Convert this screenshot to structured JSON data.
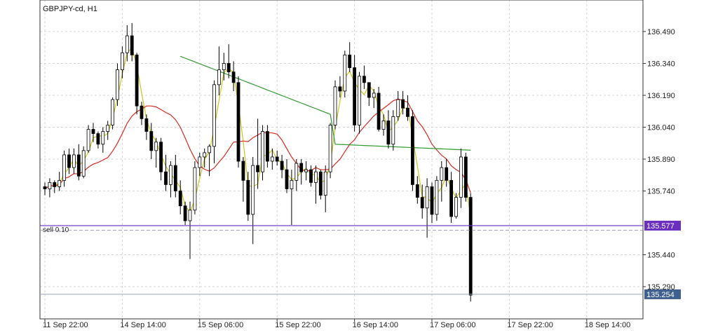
{
  "window_title": "GBPJPY-cd, H1",
  "chart_data": {
    "type": "candlestick",
    "symbol": "GBPJPY-cd",
    "timeframe": "H1",
    "title": "GBPJPY-cd, H1",
    "y_ticks": [
      "136.490",
      "136.340",
      "136.190",
      "136.040",
      "135.890",
      "135.740",
      "135.440",
      "135.290"
    ],
    "ylim": [
      135.21,
      136.59
    ],
    "x_ticks": [
      {
        "label": "11 Sep 22:00",
        "bar": 0
      },
      {
        "label": "14 Sep 14:00",
        "bar": 16
      },
      {
        "label": "15 Sep 06:00",
        "bar": 32
      },
      {
        "label": "15 Sep 22:00",
        "bar": 48
      },
      {
        "label": "16 Sep 14:00",
        "bar": 64
      },
      {
        "label": "17 Sep 06:00",
        "bar": 80
      },
      {
        "label": "17 Sep 22:00",
        "bar": 96
      },
      {
        "label": "18 Sep 14:00",
        "bar": 112
      }
    ],
    "grid": true,
    "order_line": {
      "label": "sell 0.10",
      "price": 135.577,
      "price_label": "135.577",
      "color": "#6a2fc0",
      "sl_price": 135.555
    },
    "bid_line": {
      "price": 135.254,
      "price_label": "135.254",
      "color": "#3f5f8f"
    },
    "ma_colors": {
      "fast": "#c8c81e",
      "medium": "#d9291e",
      "slow": "#2e9a2e"
    },
    "candles": [
      [
        135.76,
        135.78,
        135.72,
        135.75
      ],
      [
        135.75,
        135.8,
        135.71,
        135.78
      ],
      [
        135.78,
        135.79,
        135.73,
        135.76
      ],
      [
        135.76,
        135.83,
        135.74,
        135.79
      ],
      [
        135.79,
        135.93,
        135.76,
        135.91
      ],
      [
        135.91,
        135.94,
        135.82,
        135.85
      ],
      [
        135.85,
        135.94,
        135.82,
        135.91
      ],
      [
        135.91,
        135.96,
        135.79,
        135.81
      ],
      [
        135.81,
        135.95,
        135.8,
        135.93
      ],
      [
        135.93,
        136.05,
        135.92,
        136.03
      ],
      [
        136.03,
        136.06,
        135.97,
        136.01
      ],
      [
        136.01,
        136.02,
        135.94,
        135.96
      ],
      [
        135.96,
        136.04,
        135.92,
        136.02
      ],
      [
        136.02,
        136.07,
        135.98,
        136.05
      ],
      [
        136.05,
        136.18,
        136.03,
        136.17
      ],
      [
        136.17,
        136.34,
        136.14,
        136.31
      ],
      [
        136.31,
        136.42,
        136.27,
        136.39
      ],
      [
        136.39,
        136.52,
        136.35,
        136.47
      ],
      [
        136.47,
        136.53,
        136.35,
        136.38
      ],
      [
        136.38,
        136.39,
        136.1,
        136.14
      ],
      [
        136.14,
        136.16,
        136.05,
        136.08
      ],
      [
        136.08,
        136.1,
        135.98,
        136.02
      ],
      [
        136.02,
        136.06,
        135.89,
        135.93
      ],
      [
        135.93,
        135.99,
        135.85,
        135.97
      ],
      [
        135.97,
        135.99,
        135.79,
        135.83
      ],
      [
        135.83,
        135.91,
        135.74,
        135.77
      ],
      [
        135.77,
        135.88,
        135.71,
        135.86
      ],
      [
        135.86,
        135.91,
        135.71,
        135.74
      ],
      [
        135.74,
        135.79,
        135.63,
        135.67
      ],
      [
        135.67,
        135.69,
        135.58,
        135.6
      ],
      [
        135.6,
        135.69,
        135.42,
        135.65
      ],
      [
        135.65,
        135.88,
        135.63,
        135.85
      ],
      [
        135.85,
        135.92,
        135.81,
        135.9
      ],
      [
        135.9,
        135.94,
        135.85,
        135.92
      ],
      [
        135.92,
        135.96,
        135.81,
        135.95
      ],
      [
        135.95,
        136.26,
        135.87,
        136.24
      ],
      [
        136.24,
        136.42,
        136.19,
        136.31
      ],
      [
        136.31,
        136.39,
        136.26,
        136.34
      ],
      [
        136.34,
        136.43,
        136.27,
        136.3
      ],
      [
        136.3,
        136.35,
        136.21,
        136.25
      ],
      [
        136.25,
        136.28,
        135.85,
        135.88
      ],
      [
        135.88,
        135.9,
        135.69,
        135.79
      ],
      [
        135.79,
        135.83,
        135.6,
        135.63
      ],
      [
        135.63,
        135.9,
        135.49,
        135.86
      ],
      [
        135.86,
        136.08,
        135.75,
        135.83
      ],
      [
        135.83,
        136.05,
        135.79,
        136.02
      ],
      [
        136.02,
        136.05,
        135.85,
        135.88
      ],
      [
        135.88,
        135.94,
        135.84,
        135.9
      ],
      [
        135.9,
        135.93,
        135.86,
        135.88
      ],
      [
        135.88,
        135.91,
        135.8,
        135.84
      ],
      [
        135.84,
        135.89,
        135.73,
        135.75
      ],
      [
        135.75,
        135.84,
        135.58,
        135.79
      ],
      [
        135.79,
        135.89,
        135.74,
        135.87
      ],
      [
        135.87,
        135.89,
        135.77,
        135.83
      ],
      [
        135.83,
        135.88,
        135.79,
        135.84
      ],
      [
        135.84,
        135.86,
        135.76,
        135.78
      ],
      [
        135.78,
        135.86,
        135.68,
        135.83
      ],
      [
        135.83,
        135.84,
        135.7,
        135.72
      ],
      [
        135.72,
        135.86,
        135.64,
        135.83
      ],
      [
        135.83,
        136.06,
        135.8,
        136.05
      ],
      [
        136.05,
        136.26,
        136.03,
        136.23
      ],
      [
        136.23,
        136.28,
        136.18,
        136.21
      ],
      [
        136.21,
        136.4,
        136.18,
        136.38
      ],
      [
        136.38,
        136.44,
        136.3,
        136.32
      ],
      [
        136.32,
        136.38,
        136.02,
        136.05
      ],
      [
        136.05,
        136.3,
        136.01,
        136.28
      ],
      [
        136.28,
        136.33,
        136.22,
        136.25
      ],
      [
        136.25,
        136.25,
        136.14,
        136.18
      ],
      [
        136.18,
        136.22,
        136.13,
        136.2
      ],
      [
        136.2,
        136.23,
        136.02,
        136.03
      ],
      [
        136.03,
        136.1,
        136.0,
        136.07
      ],
      [
        136.07,
        136.12,
        135.94,
        135.96
      ],
      [
        135.96,
        136.12,
        135.93,
        136.09
      ],
      [
        136.09,
        136.21,
        136.07,
        136.17
      ],
      [
        136.17,
        136.21,
        136.1,
        136.13
      ],
      [
        136.13,
        136.19,
        136.07,
        136.09
      ],
      [
        136.09,
        136.12,
        135.74,
        135.77
      ],
      [
        135.77,
        135.81,
        135.68,
        135.71
      ],
      [
        135.71,
        135.77,
        135.61,
        135.66
      ],
      [
        135.66,
        135.8,
        135.52,
        135.76
      ],
      [
        135.76,
        135.78,
        135.59,
        135.63
      ],
      [
        135.63,
        135.81,
        135.6,
        135.79
      ],
      [
        135.79,
        135.88,
        135.69,
        135.85
      ],
      [
        135.85,
        135.89,
        135.76,
        135.79
      ],
      [
        135.79,
        135.83,
        135.59,
        135.62
      ],
      [
        135.62,
        135.73,
        135.61,
        135.71
      ],
      [
        135.71,
        135.94,
        135.66,
        135.9
      ],
      [
        135.9,
        135.92,
        135.69,
        135.71
      ],
      [
        135.71,
        135.73,
        135.22,
        135.25
      ]
    ]
  }
}
